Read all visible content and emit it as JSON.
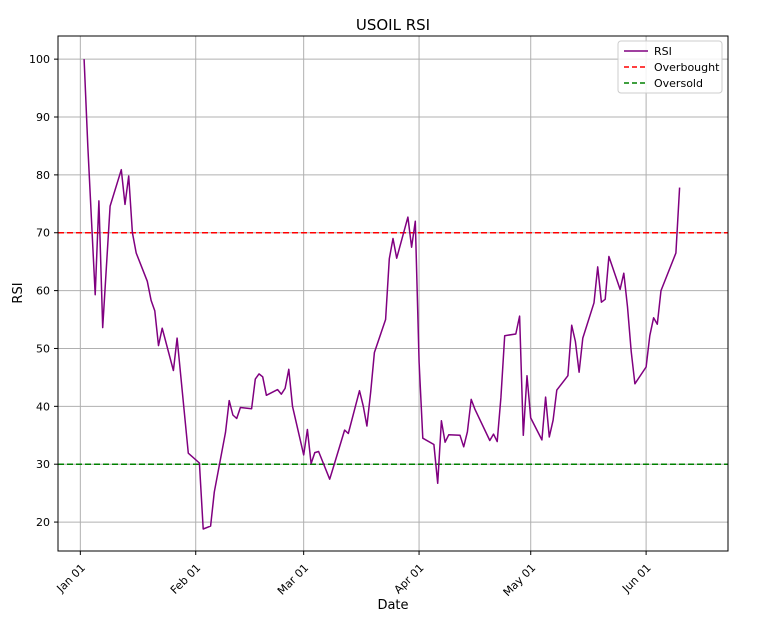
{
  "chart_data": {
    "type": "line",
    "title": "USOIL RSI",
    "xlabel": "Date",
    "ylabel": "RSI",
    "ylim": [
      15,
      104
    ],
    "xlim": [
      "2023-12-26",
      "2024-06-23"
    ],
    "x_ticks": [
      {
        "date": "2024-01-01",
        "label": "Jan 01"
      },
      {
        "date": "2024-02-01",
        "label": "Feb 01"
      },
      {
        "date": "2024-03-01",
        "label": "Mar 01"
      },
      {
        "date": "2024-04-01",
        "label": "Apr 01"
      },
      {
        "date": "2024-05-01",
        "label": "May 01"
      },
      {
        "date": "2024-06-01",
        "label": "Jun 01"
      }
    ],
    "y_ticks": [
      20,
      30,
      40,
      50,
      60,
      70,
      80,
      90,
      100
    ],
    "grid": true,
    "legend_position": "top-right",
    "series": [
      {
        "name": "RSI",
        "color": "#800080",
        "style": "solid",
        "points": [
          [
            "2024-01-02",
            100
          ],
          [
            "2024-01-03",
            85
          ],
          [
            "2024-01-05",
            59.3
          ],
          [
            "2024-01-06",
            75.5
          ],
          [
            "2024-01-07",
            53.6
          ],
          [
            "2024-01-09",
            74.6
          ],
          [
            "2024-01-12",
            80.9
          ],
          [
            "2024-01-13",
            74.9
          ],
          [
            "2024-01-14",
            79.8
          ],
          [
            "2024-01-15",
            70
          ],
          [
            "2024-01-16",
            66.5
          ],
          [
            "2024-01-19",
            61.6
          ],
          [
            "2024-01-20",
            58.3
          ],
          [
            "2024-01-21",
            56.5
          ],
          [
            "2024-01-22",
            50.5
          ],
          [
            "2024-01-23",
            53.5
          ],
          [
            "2024-01-26",
            46.2
          ],
          [
            "2024-01-27",
            51.8
          ],
          [
            "2024-01-28",
            45.2
          ],
          [
            "2024-01-30",
            31.9
          ],
          [
            "2024-02-02",
            30.2
          ],
          [
            "2024-02-03",
            18.8
          ],
          [
            "2024-02-05",
            19.3
          ],
          [
            "2024-02-06",
            25.2
          ],
          [
            "2024-02-09",
            35.5
          ],
          [
            "2024-02-10",
            41
          ],
          [
            "2024-02-11",
            38.5
          ],
          [
            "2024-02-12",
            37.9
          ],
          [
            "2024-02-13",
            39.8
          ],
          [
            "2024-02-16",
            39.6
          ],
          [
            "2024-02-17",
            44.7
          ],
          [
            "2024-02-18",
            45.6
          ],
          [
            "2024-02-19",
            45.1
          ],
          [
            "2024-02-20",
            41.9
          ],
          [
            "2024-02-23",
            42.9
          ],
          [
            "2024-02-24",
            42.1
          ],
          [
            "2024-02-25",
            43.1
          ],
          [
            "2024-02-26",
            46.4
          ],
          [
            "2024-02-27",
            40
          ],
          [
            "2024-03-01",
            31.6
          ],
          [
            "2024-03-02",
            36
          ],
          [
            "2024-03-03",
            30.1
          ],
          [
            "2024-03-04",
            32
          ],
          [
            "2024-03-05",
            32.2
          ],
          [
            "2024-03-08",
            27.4
          ],
          [
            "2024-03-09",
            29.5
          ],
          [
            "2024-03-12",
            35.9
          ],
          [
            "2024-03-13",
            35.3
          ],
          [
            "2024-03-16",
            42.7
          ],
          [
            "2024-03-17",
            40.1
          ],
          [
            "2024-03-18",
            36.6
          ],
          [
            "2024-03-19",
            42.5
          ],
          [
            "2024-03-20",
            49.3
          ],
          [
            "2024-03-23",
            55
          ],
          [
            "2024-03-24",
            65.5
          ],
          [
            "2024-03-25",
            69
          ],
          [
            "2024-03-26",
            65.6
          ],
          [
            "2024-03-29",
            72.7
          ],
          [
            "2024-03-30",
            67.5
          ],
          [
            "2024-03-31",
            72
          ],
          [
            "2024-04-01",
            47.6
          ],
          [
            "2024-04-02",
            34.5
          ],
          [
            "2024-04-05",
            33.4
          ],
          [
            "2024-04-06",
            26.7
          ],
          [
            "2024-04-07",
            37.5
          ],
          [
            "2024-04-08",
            33.8
          ],
          [
            "2024-04-09",
            35.1
          ],
          [
            "2024-04-12",
            35
          ],
          [
            "2024-04-13",
            33
          ],
          [
            "2024-04-14",
            35.6
          ],
          [
            "2024-04-15",
            41.2
          ],
          [
            "2024-04-16",
            39.5
          ],
          [
            "2024-04-20",
            34.1
          ],
          [
            "2024-04-21",
            35.2
          ],
          [
            "2024-04-22",
            33.9
          ],
          [
            "2024-04-23",
            41.5
          ],
          [
            "2024-04-24",
            52.2
          ],
          [
            "2024-04-27",
            52.5
          ],
          [
            "2024-04-28",
            55.6
          ],
          [
            "2024-04-29",
            35
          ],
          [
            "2024-04-30",
            45.3
          ],
          [
            "2024-05-01",
            38
          ],
          [
            "2024-05-04",
            34.2
          ],
          [
            "2024-05-05",
            41.6
          ],
          [
            "2024-05-06",
            34.7
          ],
          [
            "2024-05-07",
            37.6
          ],
          [
            "2024-05-08",
            42.8
          ],
          [
            "2024-05-11",
            45.3
          ],
          [
            "2024-05-12",
            54
          ],
          [
            "2024-05-13",
            51.2
          ],
          [
            "2024-05-14",
            45.9
          ],
          [
            "2024-05-15",
            51.8
          ],
          [
            "2024-05-18",
            57.9
          ],
          [
            "2024-05-19",
            64.1
          ],
          [
            "2024-05-20",
            58
          ],
          [
            "2024-05-21",
            58.5
          ],
          [
            "2024-05-22",
            65.9
          ],
          [
            "2024-05-25",
            60.2
          ],
          [
            "2024-05-26",
            63
          ],
          [
            "2024-05-27",
            57.2
          ],
          [
            "2024-05-28",
            49.5
          ],
          [
            "2024-05-29",
            43.9
          ],
          [
            "2024-06-01",
            46.8
          ],
          [
            "2024-06-02",
            52.2
          ],
          [
            "2024-06-03",
            55.3
          ],
          [
            "2024-06-04",
            54.2
          ],
          [
            "2024-06-05",
            60
          ],
          [
            "2024-06-09",
            66.5
          ],
          [
            "2024-06-10",
            77.8
          ]
        ]
      },
      {
        "name": "Overbought",
        "color": "#ff0000",
        "style": "dashed",
        "y": 70
      },
      {
        "name": "Oversold",
        "color": "#008000",
        "style": "dashed",
        "y": 30
      }
    ]
  }
}
